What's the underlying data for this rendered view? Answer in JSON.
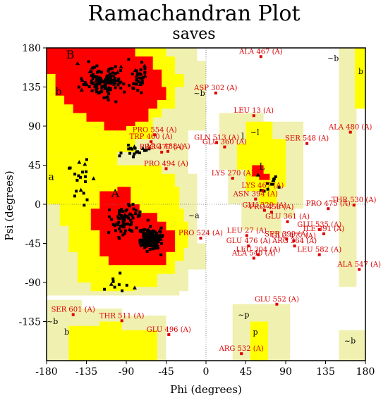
{
  "chart_data": {
    "type": "scatter",
    "title": "Ramachandran Plot",
    "subtitle": "saves",
    "xlabel": "Phi (degrees)",
    "ylabel": "Psi (degrees)",
    "xlim": [
      -180,
      180
    ],
    "ylim": [
      -180,
      180
    ],
    "xticks": [
      -180,
      -135,
      -90,
      -45,
      0,
      45,
      90,
      135,
      180
    ],
    "yticks": [
      180,
      135,
      90,
      45,
      0,
      -45,
      -90,
      -135
    ],
    "grid": false,
    "colors": {
      "core": "#ff0000",
      "allowed": "#ffff00",
      "generous": "#f0f0b0",
      "outlier": "#dd0000",
      "point": "#000000"
    },
    "region_labels": [
      {
        "text": "B",
        "phi": -158,
        "psi": 168,
        "size": 16
      },
      {
        "text": "b",
        "phi": -170,
        "psi": 126,
        "size": 14
      },
      {
        "text": "~b",
        "phi": -14,
        "psi": 125,
        "size": 11
      },
      {
        "text": "A",
        "phi": -107,
        "psi": 8,
        "size": 16
      },
      {
        "text": "a",
        "phi": -178,
        "psi": 28,
        "size": 14
      },
      {
        "text": "~a",
        "phi": -20,
        "psi": -16,
        "size": 11
      },
      {
        "text": "L",
        "phi": 60,
        "psi": 40,
        "size": 12
      },
      {
        "text": "l",
        "phi": 40,
        "psi": 75,
        "size": 12
      },
      {
        "text": "~l",
        "phi": 50,
        "psi": 80,
        "size": 11
      },
      {
        "text": "~b",
        "phi": 137,
        "psi": 165,
        "size": 11
      },
      {
        "text": "b",
        "phi": 172,
        "psi": 150,
        "size": 11
      },
      {
        "text": "~b",
        "phi": -180,
        "psi": -138,
        "size": 11
      },
      {
        "text": "b",
        "phi": -160,
        "psi": -150,
        "size": 11
      },
      {
        "text": "~p",
        "phi": 36,
        "psi": -130,
        "size": 11
      },
      {
        "text": "p",
        "phi": 53,
        "psi": -150,
        "size": 11
      },
      {
        "text": "~b",
        "phi": 156,
        "psi": -160,
        "size": 11
      }
    ],
    "outliers": [
      {
        "label": "ALA 467 (A)",
        "phi": 62,
        "psi": 170
      },
      {
        "label": "ASP 302 (A)",
        "phi": 11,
        "psi": 128
      },
      {
        "label": "LEU 13 (A)",
        "phi": 54,
        "psi": 102
      },
      {
        "label": "ALA 480 (A)",
        "phi": 163,
        "psi": 83
      },
      {
        "label": "PRO 554 (A)",
        "phi": -58,
        "psi": 80
      },
      {
        "label": "TRP 460 (A)",
        "phi": -62,
        "psi": 72
      },
      {
        "label": "ARG 488 (A)",
        "phi": -43,
        "psi": 61
      },
      {
        "label": "GLN 513 (A)",
        "phi": 12,
        "psi": 71
      },
      {
        "label": "GLU 360 (A)",
        "phi": 21,
        "psi": 66
      },
      {
        "label": "PRO 477 (A)",
        "phi": -50,
        "psi": 60
      },
      {
        "label": "SER 548 (A)",
        "phi": 114,
        "psi": 70
      },
      {
        "label": "PRO 494 (A)",
        "phi": -45,
        "psi": 41
      },
      {
        "label": "LYS 270 (A)",
        "phi": 30,
        "psi": 30
      },
      {
        "label": "ASN 394 (A)",
        "phi": 56,
        "psi": 6
      },
      {
        "label": "LYS 467 (A)",
        "phi": 64,
        "psi": 16
      },
      {
        "label": "THR 530 (A)",
        "phi": 167,
        "psi": -1
      },
      {
        "label": "PRO 475 (A)",
        "phi": 138,
        "psi": -5
      },
      {
        "label": "GLU 329 (A)",
        "phi": 66,
        "psi": -7
      },
      {
        "label": "PRO 458 (A)",
        "phi": 74,
        "psi": -9
      },
      {
        "label": "GLU 361 (A)",
        "phi": 92,
        "psi": -20
      },
      {
        "label": "GLU 535 (A)",
        "phi": 128,
        "psi": -29
      },
      {
        "label": "ILE 391 (A)",
        "phi": 133,
        "psi": -34
      },
      {
        "label": "LEU 27 (A)",
        "phi": 46,
        "psi": -36
      },
      {
        "label": "PRO 524 (A)",
        "phi": -6,
        "psi": -39
      },
      {
        "label": "SER 399 (A)",
        "phi": 91,
        "psi": -40
      },
      {
        "label": "GLU 477 (A)",
        "phi": 99,
        "psi": -42
      },
      {
        "label": "GLU 476 (A)",
        "phi": 48,
        "psi": -48
      },
      {
        "label": "ARG 364 (A)",
        "phi": 100,
        "psi": -48
      },
      {
        "label": "LEU 304 (A)",
        "phi": 59,
        "psi": -58
      },
      {
        "label": "ALA 540 (A)",
        "phi": 54,
        "psi": -62
      },
      {
        "label": "LEU 582 (A)",
        "phi": 128,
        "psi": -58
      },
      {
        "label": "ALA 547 (A)",
        "phi": 173,
        "psi": -75
      },
      {
        "label": "GLU 552 (A)",
        "phi": 80,
        "psi": -115
      },
      {
        "label": "SER 601 (A)",
        "phi": -150,
        "psi": -127
      },
      {
        "label": "THR 511 (A)",
        "phi": -95,
        "psi": -134
      },
      {
        "label": "GLU 496 (A)",
        "phi": -42,
        "psi": -150
      },
      {
        "label": "ARG 532 (A)",
        "phi": 40,
        "psi": -172
      }
    ]
  }
}
